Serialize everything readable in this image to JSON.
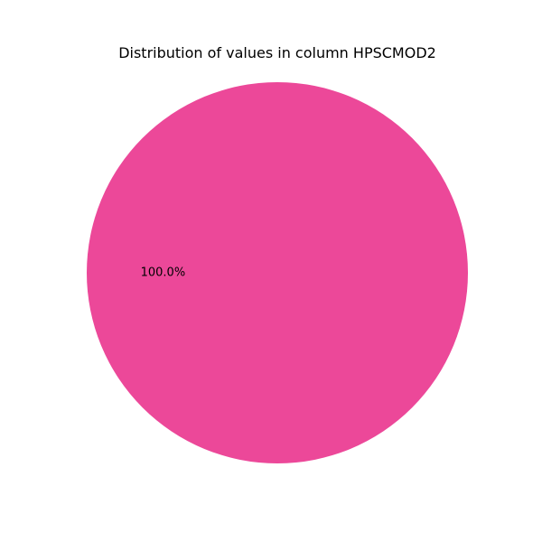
{
  "chart_data": {
    "type": "pie",
    "title": "Distribution of values in column HPSCMOD2",
    "slices": [
      {
        "value": 100.0,
        "label_text": "100.0%",
        "color": "#ec4899"
      }
    ],
    "legend": "none"
  }
}
